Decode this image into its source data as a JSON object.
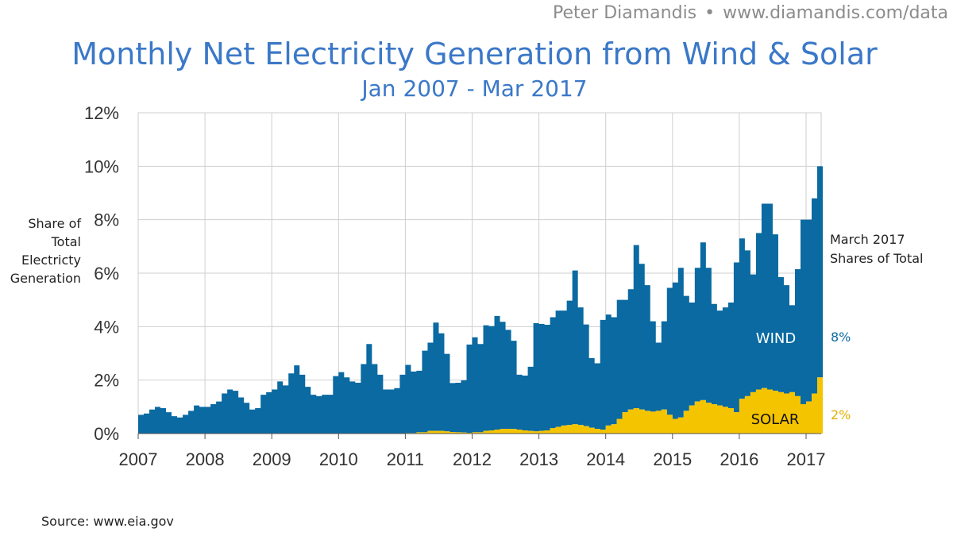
{
  "header": {
    "author": "Peter Diamandis",
    "separator": "•",
    "url": "www.diamandis.com/data"
  },
  "footer": {
    "source": "Source: www.eia.gov"
  },
  "chart_data": {
    "type": "area",
    "title": "Monthly Net Electricity Generation from Wind & Solar",
    "subtitle": "Jan 2007 - Mar 2017",
    "ylabel": "Share of Total Electricty Generation",
    "xlabel": "",
    "ylim": [
      0,
      12
    ],
    "yticks": [
      "0%",
      "2%",
      "4%",
      "6%",
      "8%",
      "10%",
      "12%"
    ],
    "xticks": [
      "2007",
      "2008",
      "2009",
      "2010",
      "2011",
      "2012",
      "2013",
      "2014",
      "2015",
      "2016",
      "2017"
    ],
    "grid": true,
    "stacked": true,
    "side_note": "March 2017 Shares of Total",
    "series": [
      {
        "name": "SOLAR",
        "color": "#f5c400",
        "final_label": "2%",
        "values": [
          0.0,
          0.0,
          0.0,
          0.0,
          0.0,
          0.0,
          0.0,
          0.0,
          0.0,
          0.0,
          0.0,
          0.0,
          0.0,
          0.0,
          0.0,
          0.0,
          0.0,
          0.0,
          0.0,
          0.0,
          0.0,
          0.0,
          0.0,
          0.0,
          0.0,
          0.0,
          0.0,
          0.0,
          0.0,
          0.0,
          0.0,
          0.0,
          0.0,
          0.0,
          0.0,
          0.0,
          0.0,
          0.0,
          0.0,
          0.0,
          0.0,
          0.0,
          0.0,
          0.0,
          0.0,
          0.0,
          0.0,
          0.0,
          0.02,
          0.02,
          0.05,
          0.05,
          0.1,
          0.1,
          0.1,
          0.08,
          0.06,
          0.05,
          0.04,
          0.03,
          0.05,
          0.05,
          0.1,
          0.12,
          0.15,
          0.18,
          0.18,
          0.17,
          0.15,
          0.12,
          0.1,
          0.08,
          0.1,
          0.12,
          0.2,
          0.25,
          0.3,
          0.32,
          0.35,
          0.32,
          0.28,
          0.22,
          0.18,
          0.15,
          0.3,
          0.35,
          0.55,
          0.8,
          0.9,
          0.95,
          0.9,
          0.85,
          0.82,
          0.85,
          0.9,
          0.7,
          0.55,
          0.6,
          0.85,
          1.05,
          1.2,
          1.25,
          1.15,
          1.1,
          1.05,
          1.0,
          0.95,
          0.8,
          1.3,
          1.4,
          1.55,
          1.65,
          1.7,
          1.65,
          1.6,
          1.55,
          1.5,
          1.55,
          1.4,
          1.1,
          1.2,
          1.5,
          2.1
        ]
      },
      {
        "name": "WIND",
        "color": "#0a6aa1",
        "final_label": "8%",
        "values": [
          0.7,
          0.75,
          0.9,
          1.0,
          0.95,
          0.8,
          0.65,
          0.6,
          0.7,
          0.85,
          1.05,
          1.0,
          1.0,
          1.1,
          1.2,
          1.5,
          1.65,
          1.6,
          1.35,
          1.15,
          0.9,
          0.95,
          1.45,
          1.55,
          1.65,
          1.95,
          1.8,
          2.25,
          2.55,
          2.2,
          1.75,
          1.45,
          1.4,
          1.45,
          1.45,
          2.15,
          2.3,
          2.1,
          1.95,
          1.9,
          2.6,
          3.35,
          2.6,
          2.2,
          1.65,
          1.65,
          1.7,
          2.2,
          2.55,
          2.3,
          2.3,
          3.05,
          3.3,
          4.05,
          3.65,
          2.9,
          1.83,
          1.85,
          1.95,
          3.3,
          3.55,
          3.3,
          3.95,
          3.9,
          4.25,
          4.0,
          3.7,
          3.3,
          2.05,
          2.05,
          2.4,
          4.05,
          4.0,
          3.95,
          4.15,
          4.35,
          4.3,
          4.65,
          5.75,
          4.4,
          3.8,
          2.6,
          2.45,
          4.1,
          4.15,
          4.0,
          4.45,
          4.2,
          4.5,
          6.1,
          5.45,
          4.7,
          3.38,
          2.55,
          3.3,
          4.75,
          5.1,
          5.6,
          4.3,
          3.85,
          5.0,
          5.9,
          5.05,
          3.75,
          3.55,
          3.72,
          3.95,
          5.6,
          6.0,
          5.45,
          4.4,
          5.85,
          6.9,
          6.95,
          5.85,
          4.3,
          4.05,
          3.25,
          4.75,
          6.9,
          6.8,
          7.3,
          7.9
        ]
      }
    ]
  }
}
